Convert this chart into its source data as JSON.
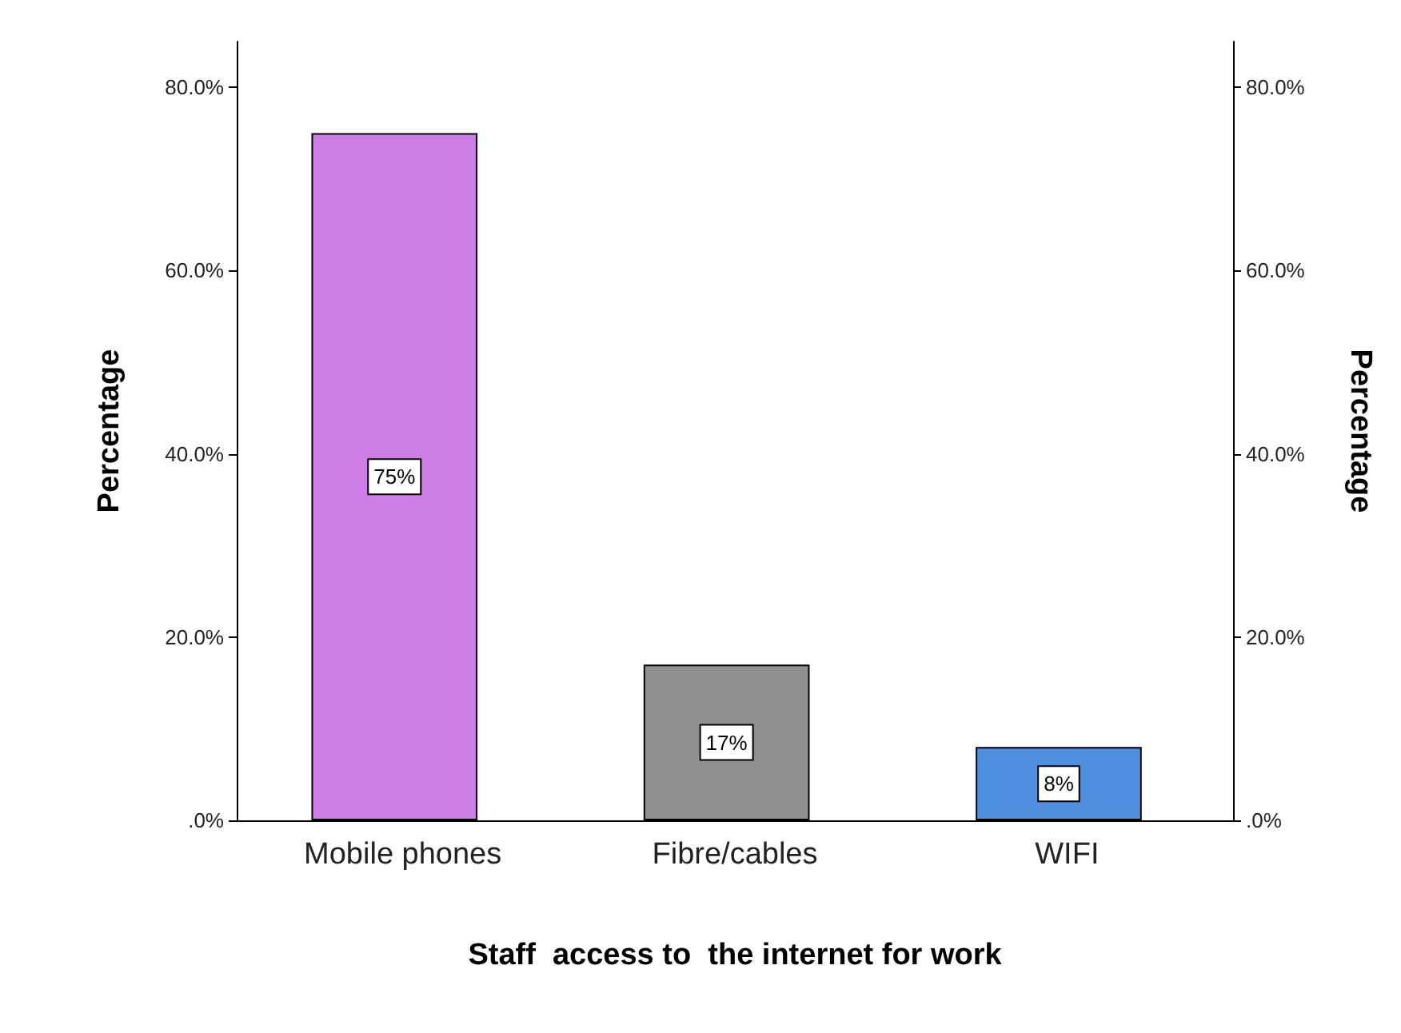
{
  "chart_data": {
    "type": "bar",
    "xlabel": "Staff  access to  the internet for work",
    "ylabel": "Percentage",
    "y2label": "Percentage",
    "categories": [
      "Mobile phones",
      "Fibre/cables",
      "WIFI"
    ],
    "values": [
      75,
      17,
      8
    ],
    "colors": [
      "#cc7ee6",
      "#918e8e",
      "#4e8fe0"
    ],
    "value_labels": [
      "75%",
      "17%",
      "8%"
    ],
    "ylim": [
      0,
      85
    ],
    "yticks": [
      {
        "value": 0,
        "label": ".0%"
      },
      {
        "value": 20,
        "label": "20.0%"
      },
      {
        "value": 40,
        "label": "40.0%"
      },
      {
        "value": 60,
        "label": "60.0%"
      },
      {
        "value": 80,
        "label": "80.0%"
      }
    ],
    "y2lim": [
      0,
      85
    ],
    "y2ticks": [
      {
        "value": 0,
        "label": ".0%"
      },
      {
        "value": 20,
        "label": "20.0%"
      },
      {
        "value": 40,
        "label": "40.0%"
      },
      {
        "value": 60,
        "label": "60.0%"
      },
      {
        "value": 80,
        "label": "80.0%"
      }
    ],
    "grid": false
  }
}
